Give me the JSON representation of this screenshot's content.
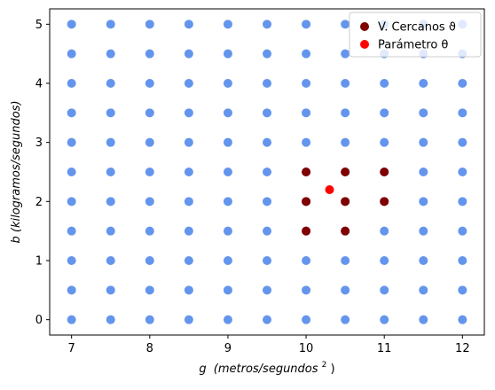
{
  "chart_data": {
    "type": "scatter",
    "xlabel_var": "g",
    "xlabel_units": "(metros/segundos",
    "xlabel_exp": "2",
    "xlabel_close": ")",
    "ylabel": "b (kilogramos/segundos)",
    "xlim": [
      6.72,
      12.28
    ],
    "ylim": [
      -0.26,
      5.26
    ],
    "xticks": [
      7,
      8,
      9,
      10,
      11,
      12
    ],
    "yticks": [
      0,
      1,
      2,
      3,
      4,
      5
    ],
    "legend_position": "top-right",
    "colors": {
      "grid_points": "#6495ed",
      "neighbors": "#800000",
      "parameter": "#ff0000"
    },
    "grid": {
      "x_values": [
        7,
        7.5,
        8,
        8.5,
        9,
        9.5,
        10,
        10.5,
        11,
        11.5,
        12
      ],
      "y_values": [
        0,
        0.5,
        1,
        1.5,
        2,
        2.5,
        3,
        3.5,
        4,
        4.5,
        5
      ]
    },
    "series": [
      {
        "name": "V. Cercanos ϑ",
        "color": "#800000",
        "points": [
          [
            10,
            2.5
          ],
          [
            10.5,
            2.5
          ],
          [
            11,
            2.5
          ],
          [
            10,
            2
          ],
          [
            10.5,
            2
          ],
          [
            11,
            2
          ],
          [
            10,
            1.5
          ],
          [
            10.5,
            1.5
          ]
        ]
      },
      {
        "name": "Parámetro θ",
        "color": "#ff0000",
        "points": [
          [
            10.3,
            2.2
          ]
        ]
      }
    ]
  }
}
